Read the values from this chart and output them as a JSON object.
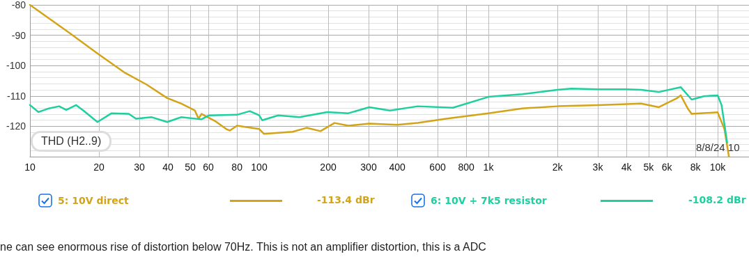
{
  "chart_data": {
    "type": "line",
    "xlim": [
      10,
      13700
    ],
    "ylim": [
      -130,
      -80
    ],
    "xticks": [
      10,
      20,
      30,
      40,
      50,
      60,
      80,
      100,
      200,
      300,
      400,
      600,
      800,
      {
        "value": 1000,
        "label": "1k"
      },
      {
        "value": 2000,
        "label": "2k"
      },
      {
        "value": 3000,
        "label": "3k"
      },
      {
        "value": 4000,
        "label": "4k"
      },
      {
        "value": 5000,
        "label": "5k"
      },
      {
        "value": 6000,
        "label": "6k"
      },
      {
        "value": 8000,
        "label": "8k"
      },
      {
        "value": 10000,
        "label": "10k"
      }
    ],
    "yticks": [
      {
        "value": -130,
        "label": null
      },
      -120,
      -110,
      -100,
      -90,
      -80
    ],
    "log": "x",
    "grid": true,
    "legend": "bottom",
    "marker": "none",
    "line_style": "solid",
    "annotations": [
      "THD (H2..9)",
      "8/8/24 10",
      "-113.4 dBr",
      "-108.2 dBr",
      "ne can see enormous rise of distortion below 70Hz. This is not an amplifier distortion, this is a ADC"
    ],
    "series": [
      {
        "name": "5: 10V direct",
        "color": "#d4a418",
        "x": [
          10,
          14.9,
          19.7,
          26,
          32.2,
          39.7,
          45.6,
          52.4,
          54.4,
          56,
          64,
          71.8,
          74.5,
          80,
          100,
          105,
          140,
          161,
          185,
          213,
          245,
          302,
          400,
          492,
          654,
          1000,
          1405,
          2000,
          3000,
          4640,
          5540,
          6660,
          6900,
          7400,
          7700,
          10000,
          10700,
          11200
        ],
        "values": [
          -80,
          -89.3,
          -96,
          -102.4,
          -106.2,
          -110.7,
          -112.5,
          -114.8,
          -117.5,
          -115.9,
          -118.2,
          -120.9,
          -121.4,
          -119.8,
          -120.9,
          -122.5,
          -121.8,
          -120.5,
          -121.6,
          -118.9,
          -119.8,
          -119.1,
          -119.5,
          -118.9,
          -117.5,
          -115.7,
          -114.1,
          -113.4,
          -113,
          -112.5,
          -113.7,
          -110.7,
          -109.8,
          -114.1,
          -115.9,
          -115.4,
          -120.9,
          -130
        ]
      },
      {
        "name": "6: 10V + 7k5 resistor",
        "color": "#1ecf9f",
        "x": [
          10,
          10.9,
          12.1,
          13.4,
          14.4,
          15.9,
          17.1,
          19.7,
          22.7,
          27,
          29,
          34,
          39.7,
          45.6,
          56,
          60.4,
          80,
          91,
          100,
          103,
          121,
          150,
          198,
          245,
          302,
          372,
          492,
          700,
          1000,
          1405,
          2000,
          2300,
          3000,
          4000,
          4640,
          5540,
          6900,
          7700,
          8700,
          10000,
          10400,
          11000
        ],
        "values": [
          -113,
          -115.3,
          -114.1,
          -113.4,
          -114.6,
          -113,
          -114.8,
          -118.6,
          -115.7,
          -115.9,
          -117.5,
          -117,
          -118.6,
          -117,
          -117.7,
          -116.4,
          -116.2,
          -115,
          -116.4,
          -118,
          -116.4,
          -117,
          -115.3,
          -115.7,
          -113.7,
          -114.8,
          -113.4,
          -113.9,
          -110.3,
          -109.4,
          -108,
          -107.6,
          -107.8,
          -107.8,
          -108,
          -108.7,
          -107.1,
          -111.2,
          -110.1,
          -109.8,
          -113,
          -125.4
        ]
      }
    ]
  }
}
